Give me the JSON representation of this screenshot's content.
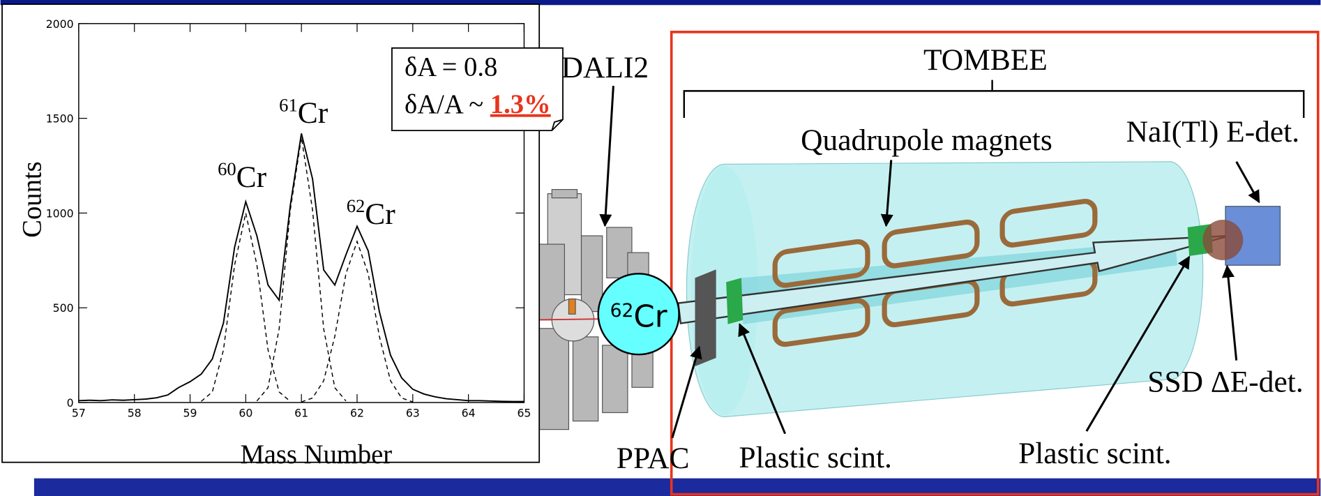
{
  "chart_data": {
    "type": "line",
    "x_label": "Mass Number",
    "y_label": "Counts",
    "xlim": [
      57,
      65
    ],
    "ylim": [
      0,
      2000
    ],
    "xticks": [
      57,
      58,
      59,
      60,
      61,
      62,
      63,
      64,
      65
    ],
    "yticks": [
      0,
      500,
      1000,
      1500,
      2000
    ],
    "x": [
      57,
      57.2,
      57.4,
      57.6,
      57.8,
      58,
      58.2,
      58.4,
      58.6,
      58.8,
      59,
      59.2,
      59.4,
      59.6,
      59.8,
      60,
      60.2,
      60.4,
      60.6,
      60.8,
      61,
      61.2,
      61.4,
      61.6,
      61.8,
      62,
      62.2,
      62.4,
      62.6,
      62.8,
      63,
      63.2,
      63.4,
      63.6,
      63.8,
      64,
      64.2,
      64.4,
      64.6,
      64.8,
      65
    ],
    "series": [
      {
        "color": "#000000",
        "values": [
          10,
          12,
          10,
          14,
          12,
          15,
          18,
          25,
          40,
          80,
          110,
          150,
          230,
          420,
          820,
          1060,
          880,
          620,
          540,
          1040,
          1420,
          1180,
          700,
          620,
          780,
          930,
          800,
          480,
          250,
          130,
          70,
          45,
          30,
          20,
          15,
          10,
          10,
          8,
          6,
          5,
          5
        ]
      },
      {
        "color": "#000000",
        "dashed": true,
        "x": [
          59.2,
          59.4,
          59.6,
          59.8,
          60,
          60.2,
          60.4,
          60.6,
          60.8
        ],
        "values": [
          6,
          56,
          278,
          726,
          1000,
          726,
          278,
          56,
          6
        ]
      },
      {
        "color": "#000000",
        "dashed": true,
        "x": [
          60.2,
          60.4,
          60.6,
          60.8,
          61,
          61.2,
          61.4,
          61.6,
          61.8
        ],
        "values": [
          8,
          78,
          389,
          1016,
          1400,
          1016,
          389,
          78,
          8
        ]
      },
      {
        "color": "#000000",
        "dashed": true,
        "x": [
          61,
          61.2,
          61.4,
          61.6,
          61.8,
          62,
          62.2,
          62.4,
          62.6,
          62.8,
          63
        ],
        "values": [
          3,
          24,
          115,
          349,
          680,
          850,
          680,
          349,
          115,
          24,
          3
        ]
      }
    ],
    "annotations": [
      {
        "mass": "60",
        "element": "Cr"
      },
      {
        "mass": "61",
        "element": "Cr"
      },
      {
        "mass": "62",
        "element": "Cr"
      }
    ]
  },
  "resolution": {
    "delta": "δA = 0.8",
    "ratio_label": "δA/A ~",
    "ratio": "1.3%"
  },
  "diagram": {
    "dali": "DALI2",
    "tombee": "TOMBEE",
    "magnets": "Quadrupole magnets",
    "nai": "NaI(Tl) E-det.",
    "ssd": "SSD ΔE-det.",
    "plastic_left": "Plastic scint.",
    "plastic_right": "Plastic scint.",
    "ppac": "PPAC",
    "beam": {
      "mass": "62",
      "element": "Cr"
    }
  }
}
